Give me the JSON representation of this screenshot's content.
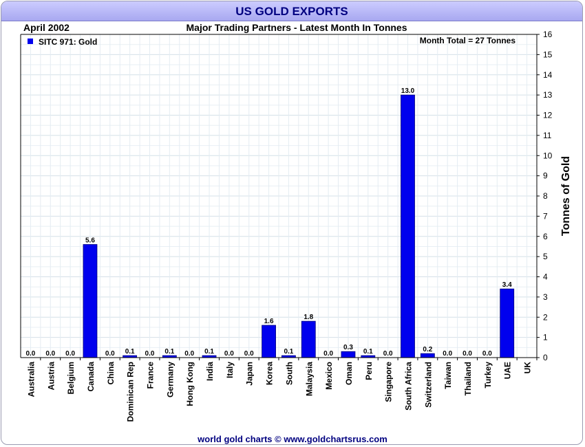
{
  "header": {
    "title": "US GOLD EXPORTS",
    "date": "April 2002",
    "subtitle": "Major Trading Partners - Latest Month In Tonnes"
  },
  "footer": {
    "credit": "world gold charts © www.goldchartsrus.com"
  },
  "colors": {
    "bar": "#0000ee",
    "title": "#000080",
    "grid": "#dde8ee",
    "titlebar": "#b8b8f8"
  },
  "chart_data": {
    "type": "bar",
    "title": "Major Trading Partners - Latest Month In Tonnes",
    "ylabel": "Tonnes of Gold",
    "xlabel": "",
    "ylim": [
      0,
      16
    ],
    "yticks": [
      0,
      1,
      2,
      3,
      4,
      5,
      6,
      7,
      8,
      9,
      10,
      11,
      12,
      13,
      14,
      15,
      16
    ],
    "grid": true,
    "legend": {
      "label": "SITC 971: Gold",
      "position": "top-left"
    },
    "annotation": "Month Total = 27 Tonnes",
    "categories": [
      "Australia",
      "Austria",
      "Belgium",
      "Canada",
      "China",
      "Dominican Rep",
      "France",
      "Germany",
      "Hong Kong",
      "India",
      "Italy",
      "Japan",
      "Korea",
      "South",
      "Malaysia",
      "Mexico",
      "Oman",
      "Peru",
      "Singapore",
      "South Africa",
      "Switzerland",
      "Taiwan",
      "Thailand",
      "Turkey",
      "UAE",
      "UK"
    ],
    "values": [
      0.0,
      0.0,
      0.0,
      5.6,
      0.0,
      0.1,
      0.0,
      0.1,
      0.0,
      0.1,
      0.0,
      0.0,
      1.6,
      0.1,
      1.8,
      0.0,
      0.3,
      0.1,
      0.0,
      13.0,
      0.2,
      0.0,
      0.0,
      0.0,
      3.4,
      null
    ],
    "value_labels": [
      "0.0",
      "0.0",
      "0.0",
      "5.6",
      "0.0",
      "0.1",
      "0.0",
      "0.1",
      "0.0",
      "0.1",
      "0.0",
      "0.0",
      "1.6",
      "0.1",
      "1.8",
      "0.0",
      "0.3",
      "0.1",
      "0.0",
      "13.0",
      "0.2",
      "0.0",
      "0.0",
      "0.0",
      "3.4",
      ""
    ]
  }
}
